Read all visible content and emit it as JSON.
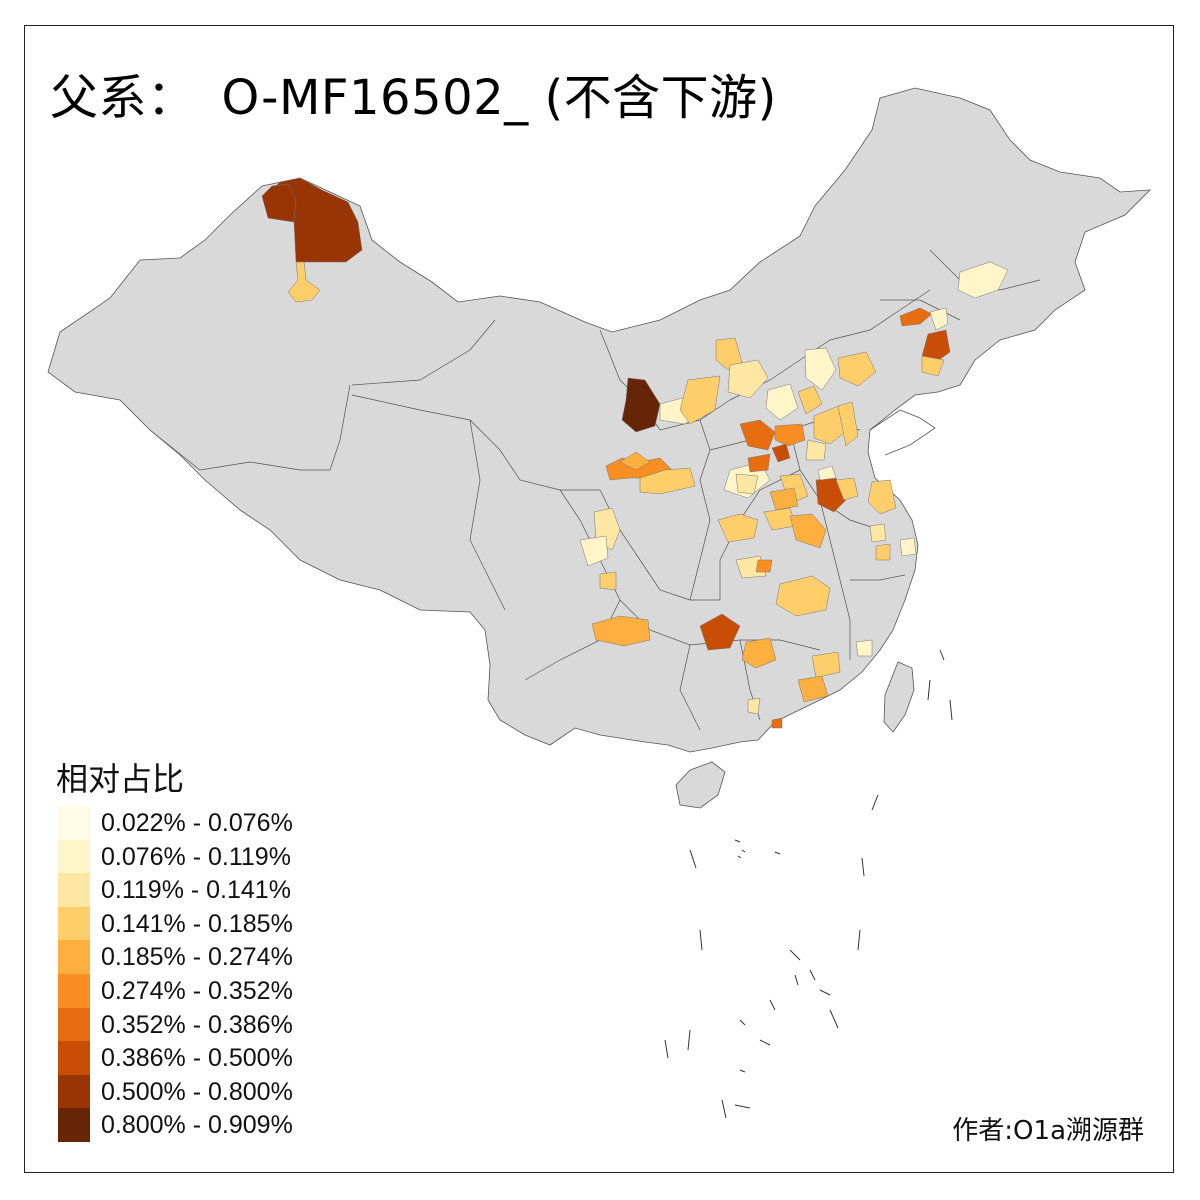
{
  "title": {
    "prefix": "父系：",
    "haplogroup": "O-MF16502_",
    "suffix": "(不含下游)"
  },
  "legend": {
    "title": "相对占比",
    "bins": [
      {
        "label": "0.022% - 0.076%",
        "color": "#FFFBE5"
      },
      {
        "label": "0.076% - 0.119%",
        "color": "#FFF5C8"
      },
      {
        "label": "0.119% - 0.141%",
        "color": "#FEE6A3"
      },
      {
        "label": "0.141% - 0.185%",
        "color": "#FECE6A"
      },
      {
        "label": "0.185% - 0.274%",
        "color": "#FDB040"
      },
      {
        "label": "0.274% - 0.352%",
        "color": "#F98E22"
      },
      {
        "label": "0.352% - 0.386%",
        "color": "#E86C10"
      },
      {
        "label": "0.386% - 0.500%",
        "color": "#C84E06"
      },
      {
        "label": "0.500% - 0.800%",
        "color": "#993404"
      },
      {
        "label": "0.800% - 0.909%",
        "color": "#662506"
      }
    ]
  },
  "map_style": {
    "base_fill": "#D9D9D9",
    "border_color": "#555555"
  },
  "author": "作者:O1a溯源群"
}
